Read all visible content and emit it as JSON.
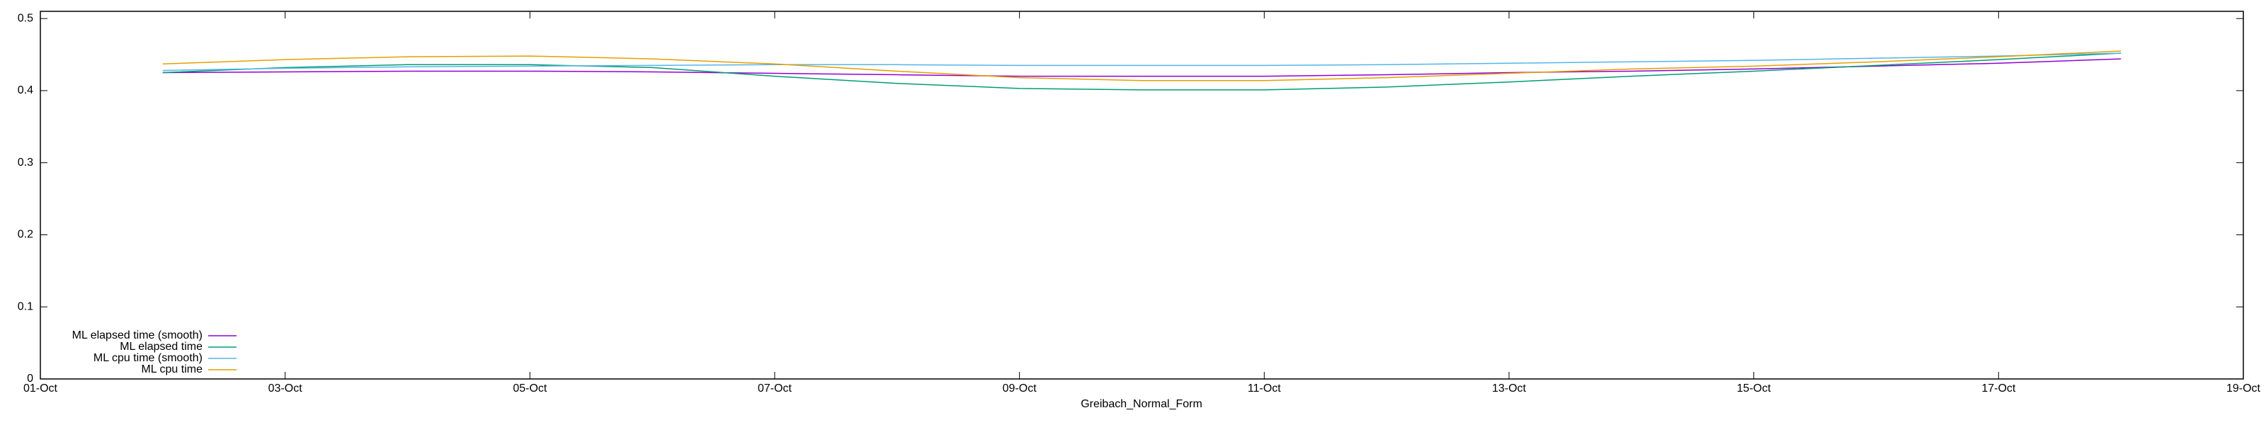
{
  "chart_data": {
    "type": "line",
    "xlabel": "Greibach_Normal_Form",
    "x": [
      2,
      3,
      4,
      5,
      6,
      7,
      8,
      9,
      10,
      11,
      12,
      13,
      14,
      15,
      16,
      17,
      18
    ],
    "series": [
      {
        "name": "ML elapsed time (smooth)",
        "color": "#9400d3",
        "values": [
          0.425,
          0.426,
          0.427,
          0.427,
          0.426,
          0.424,
          0.422,
          0.42,
          0.42,
          0.42,
          0.422,
          0.425,
          0.427,
          0.43,
          0.434,
          0.438,
          0.444
        ]
      },
      {
        "name": "ML elapsed time",
        "color": "#009e73",
        "values": [
          0.425,
          0.432,
          0.436,
          0.436,
          0.432,
          0.42,
          0.41,
          0.403,
          0.401,
          0.401,
          0.405,
          0.412,
          0.42,
          0.427,
          0.435,
          0.443,
          0.452
        ]
      },
      {
        "name": "ML cpu time (smooth)",
        "color": "#56b4e9",
        "values": [
          0.428,
          0.431,
          0.433,
          0.434,
          0.435,
          0.436,
          0.436,
          0.435,
          0.435,
          0.435,
          0.436,
          0.438,
          0.44,
          0.442,
          0.445,
          0.448,
          0.452
        ]
      },
      {
        "name": "ML cpu time",
        "color": "#e69f00",
        "values": [
          0.437,
          0.443,
          0.447,
          0.448,
          0.444,
          0.437,
          0.427,
          0.418,
          0.414,
          0.414,
          0.418,
          0.424,
          0.43,
          0.434,
          0.44,
          0.447,
          0.455
        ]
      }
    ],
    "xlim": [
      1,
      19
    ],
    "xticks": [
      {
        "value": 1,
        "label": "01-Oct"
      },
      {
        "value": 3,
        "label": "03-Oct"
      },
      {
        "value": 5,
        "label": "05-Oct"
      },
      {
        "value": 7,
        "label": "07-Oct"
      },
      {
        "value": 9,
        "label": "09-Oct"
      },
      {
        "value": 11,
        "label": "11-Oct"
      },
      {
        "value": 13,
        "label": "13-Oct"
      },
      {
        "value": 15,
        "label": "15-Oct"
      },
      {
        "value": 17,
        "label": "17-Oct"
      },
      {
        "value": 19,
        "label": "19-Oct"
      }
    ],
    "ylim": [
      0,
      0.51
    ],
    "yticks": [
      0,
      0.1,
      0.2,
      0.3,
      0.4,
      0.5
    ],
    "legend": "bottom-left"
  }
}
